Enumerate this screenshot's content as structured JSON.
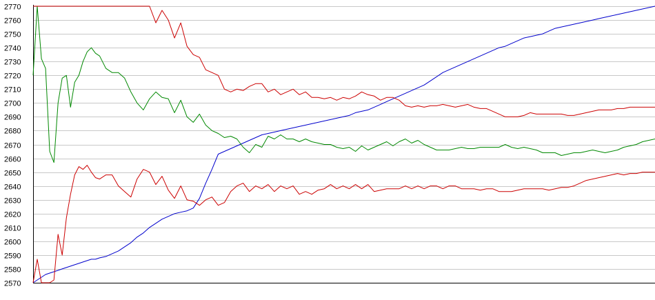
{
  "chart_data": {
    "type": "line",
    "title": "",
    "xlabel": "",
    "ylabel": "",
    "ylim": [
      2570,
      2770
    ],
    "grid": true,
    "y_ticks": [
      2570,
      2580,
      2590,
      2600,
      2610,
      2620,
      2630,
      2640,
      2650,
      2660,
      2670,
      2680,
      2690,
      2700,
      2710,
      2720,
      2730,
      2740,
      2750,
      2760,
      2770
    ],
    "x": [
      0,
      2,
      4,
      6,
      8,
      10,
      12,
      14,
      16,
      18,
      20,
      22,
      24,
      26,
      28,
      30,
      32,
      35,
      38,
      41,
      44,
      47,
      50,
      53,
      56,
      59,
      62,
      65,
      68,
      71,
      74,
      77,
      80,
      83,
      86,
      89,
      92,
      95,
      98,
      101,
      104,
      107,
      110,
      113,
      116,
      119,
      122,
      125,
      128,
      131,
      134,
      137,
      140,
      143,
      146,
      149,
      152,
      155,
      158,
      161,
      164,
      167,
      170,
      173,
      176,
      179,
      182,
      185,
      188,
      191,
      194,
      197,
      200,
      203,
      206,
      209,
      212,
      215,
      218,
      221,
      224,
      227,
      230,
      233,
      236,
      239,
      242,
      245,
      248,
      251,
      254,
      257,
      260,
      263,
      266,
      269,
      272,
      275,
      278,
      281,
      284,
      287,
      290,
      293,
      296,
      299
    ],
    "series": [
      {
        "color": "#0000cc",
        "values": [
          2570,
          2572,
          2574,
          2576,
          2577,
          2578,
          2579,
          2580,
          2581,
          2582,
          2583,
          2584,
          2585,
          2586,
          2587,
          2587,
          2588,
          2589,
          2591,
          2593,
          2596,
          2599,
          2603,
          2606,
          2610,
          2613,
          2616,
          2618,
          2620,
          2621,
          2622,
          2624,
          2631,
          2642,
          2652,
          2663,
          2665,
          2667,
          2669,
          2671,
          2673,
          2675,
          2677,
          2678,
          2679,
          2680,
          2681,
          2682,
          2683,
          2684,
          2685,
          2686,
          2687,
          2688,
          2689,
          2690,
          2691,
          2693,
          2694,
          2695,
          2697,
          2699,
          2701,
          2703,
          2705,
          2707,
          2709,
          2711,
          2713,
          2716,
          2719,
          2722,
          2724,
          2726,
          2728,
          2730,
          2732,
          2734,
          2736,
          2738,
          2740,
          2741,
          2743,
          2745,
          2747,
          2748,
          2749,
          2750,
          2752,
          2754,
          2755,
          2756,
          2757,
          2758,
          2759,
          2760,
          2761,
          2762,
          2763,
          2764,
          2765,
          2766,
          2767,
          2768,
          2769,
          2770
        ]
      },
      {
        "color": "#008800",
        "values": [
          2720,
          2770,
          2732,
          2725,
          2665,
          2657,
          2700,
          2718,
          2720,
          2697,
          2715,
          2720,
          2730,
          2737,
          2740,
          2736,
          2734,
          2725,
          2722,
          2722,
          2718,
          2708,
          2700,
          2695,
          2703,
          2708,
          2704,
          2703,
          2693,
          2702,
          2690,
          2686,
          2692,
          2684,
          2680,
          2678,
          2675,
          2676,
          2674,
          2668,
          2664,
          2670,
          2668,
          2676,
          2674,
          2677,
          2674,
          2674,
          2672,
          2674,
          2672,
          2671,
          2670,
          2670,
          2668,
          2667,
          2668,
          2665,
          2669,
          2666,
          2668,
          2670,
          2672,
          2669,
          2672,
          2674,
          2671,
          2673,
          2670,
          2668,
          2666,
          2666,
          2666,
          2667,
          2668,
          2667,
          2667,
          2668,
          2668,
          2668,
          2668,
          2670,
          2668,
          2667,
          2668,
          2667,
          2666,
          2664,
          2664,
          2664,
          2662,
          2663,
          2664,
          2664,
          2665,
          2666,
          2665,
          2664,
          2665,
          2666,
          2668,
          2669,
          2670,
          2672,
          2673,
          2674
        ]
      },
      {
        "color": "#cc0000",
        "values": [
          2770,
          2770,
          2770,
          2770,
          2770,
          2770,
          2770,
          2770,
          2770,
          2770,
          2770,
          2770,
          2770,
          2770,
          2770,
          2770,
          2770,
          2770,
          2770,
          2770,
          2770,
          2770,
          2770,
          2770,
          2770,
          2758,
          2767,
          2760,
          2747,
          2758,
          2741,
          2735,
          2733,
          2724,
          2722,
          2720,
          2710,
          2708,
          2710,
          2709,
          2712,
          2714,
          2714,
          2708,
          2710,
          2706,
          2708,
          2710,
          2706,
          2708,
          2704,
          2704,
          2703,
          2704,
          2702,
          2704,
          2703,
          2705,
          2708,
          2706,
          2705,
          2702,
          2704,
          2704,
          2702,
          2698,
          2697,
          2698,
          2697,
          2698,
          2698,
          2699,
          2698,
          2697,
          2698,
          2699,
          2697,
          2696,
          2696,
          2694,
          2692,
          2690,
          2690,
          2690,
          2691,
          2693,
          2692,
          2692,
          2692,
          2692,
          2692,
          2691,
          2691,
          2692,
          2693,
          2694,
          2695,
          2695,
          2695,
          2696,
          2696,
          2697,
          2697,
          2697,
          2697,
          2697
        ]
      },
      {
        "color": "#cc0000",
        "values": [
          2570,
          2587,
          2570,
          2570,
          2570,
          2572,
          2605,
          2590,
          2617,
          2634,
          2648,
          2654,
          2652,
          2655,
          2650,
          2646,
          2645,
          2648,
          2648,
          2640,
          2636,
          2632,
          2645,
          2652,
          2650,
          2641,
          2647,
          2637,
          2631,
          2640,
          2630,
          2629,
          2626,
          2630,
          2632,
          2626,
          2628,
          2636,
          2640,
          2642,
          2636,
          2640,
          2638,
          2641,
          2636,
          2640,
          2638,
          2640,
          2634,
          2636,
          2634,
          2637,
          2638,
          2641,
          2638,
          2640,
          2638,
          2641,
          2638,
          2641,
          2636,
          2637,
          2638,
          2638,
          2638,
          2640,
          2638,
          2640,
          2638,
          2640,
          2640,
          2638,
          2640,
          2640,
          2638,
          2638,
          2638,
          2637,
          2638,
          2638,
          2636,
          2636,
          2636,
          2637,
          2638,
          2638,
          2638,
          2638,
          2637,
          2638,
          2639,
          2639,
          2640,
          2642,
          2644,
          2645,
          2646,
          2647,
          2648,
          2649,
          2648,
          2649,
          2649,
          2650,
          2650,
          2650
        ]
      }
    ]
  }
}
